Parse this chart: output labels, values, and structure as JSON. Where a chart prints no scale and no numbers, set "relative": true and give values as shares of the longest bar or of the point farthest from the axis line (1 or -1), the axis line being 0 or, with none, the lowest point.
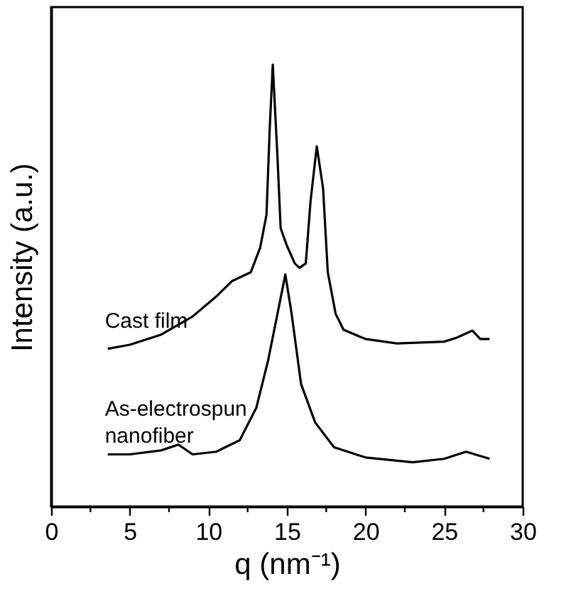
{
  "chart_data": {
    "type": "line",
    "relative": true,
    "xlabel": "q (nm⁻¹)",
    "ylabel": "Intensity (a.u.)",
    "xlim": [
      0,
      30
    ],
    "xticks": [
      0,
      {
        "value": 2.5,
        "label": null
      },
      5,
      {
        "value": 7.5,
        "label": null
      },
      10,
      {
        "value": 12.5,
        "label": null
      },
      15,
      {
        "value": 17.5,
        "label": null
      },
      20,
      {
        "value": 22.5,
        "label": null
      },
      25,
      {
        "value": 27.5,
        "label": null
      },
      30
    ],
    "grid": false,
    "legend": false,
    "marker": "none",
    "line_style": "solid",
    "series": [
      {
        "name": "Cast film",
        "color": "#000000",
        "x": [
          3.6,
          5,
          7,
          9,
          10.5,
          11.5,
          12.7,
          13.3,
          13.7,
          13.9,
          14.1,
          14.4,
          14.6,
          15.0,
          15.5,
          15.8,
          16.2,
          16.5,
          16.9,
          17.3,
          17.6,
          18.1,
          18.6,
          20,
          22,
          25,
          25.8,
          26.8,
          27.3,
          27.9
        ],
        "values": [
          0.357,
          0.366,
          0.389,
          0.43,
          0.475,
          0.51,
          0.53,
          0.586,
          0.66,
          0.85,
          1,
          0.79,
          0.63,
          0.59,
          0.55,
          0.54,
          0.55,
          0.69,
          0.815,
          0.72,
          0.53,
          0.436,
          0.4,
          0.379,
          0.369,
          0.373,
          0.382,
          0.398,
          0.379,
          0.379
        ]
      },
      {
        "name": "As-electrospun nanofiber",
        "color": "#000000",
        "x": [
          3.6,
          5,
          7,
          8.1,
          9,
          10.5,
          12,
          13.05,
          13.8,
          14.4,
          14.9,
          15.3,
          15.9,
          16.8,
          18,
          20,
          23,
          25,
          26.4,
          27.9
        ],
        "values": [
          0.118,
          0.118,
          0.127,
          0.14,
          0.118,
          0.124,
          0.15,
          0.223,
          0.33,
          0.436,
          0.525,
          0.436,
          0.277,
          0.19,
          0.134,
          0.111,
          0.1,
          0.108,
          0.124,
          0.108
        ]
      }
    ]
  }
}
